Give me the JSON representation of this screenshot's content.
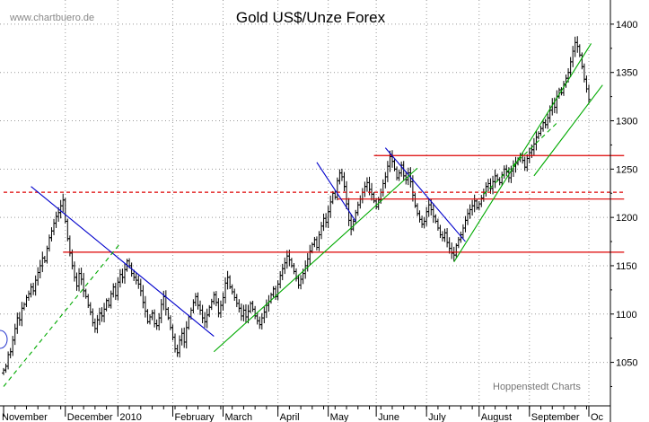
{
  "chart_data": {
    "type": "ohlc",
    "title": "Gold US$/Unze Forex",
    "watermark": "www.chartbuero.de",
    "credit": "Hoppenstedt Charts",
    "xlabel": "",
    "ylabel": "",
    "ylim": [
      1005,
      1425
    ],
    "y_ticks": [
      1050,
      1100,
      1150,
      1200,
      1250,
      1300,
      1350,
      1400
    ],
    "x_ticks": [
      "November",
      "December",
      "2010",
      "February",
      "March",
      "April",
      "May",
      "June",
      "July",
      "August",
      "September",
      "Oc"
    ],
    "grid": true,
    "series": [
      {
        "name": "",
        "style": "bar",
        "color": "#000000",
        "close": [
          1042,
          1046,
          1058,
          1061,
          1073,
          1085,
          1096,
          1094,
          1106,
          1110,
          1117,
          1121,
          1128,
          1124,
          1135,
          1143,
          1150,
          1158,
          1155,
          1168,
          1179,
          1186,
          1194,
          1201,
          1205,
          1212,
          1218,
          1196,
          1178,
          1163,
          1150,
          1138,
          1129,
          1142,
          1136,
          1124,
          1118,
          1109,
          1102,
          1091,
          1085,
          1094,
          1101,
          1098,
          1105,
          1114,
          1109,
          1121,
          1128,
          1119,
          1133,
          1141,
          1138,
          1146,
          1155,
          1150,
          1142,
          1138,
          1135,
          1131,
          1124,
          1112,
          1103,
          1092,
          1097,
          1101,
          1090,
          1088,
          1096,
          1110,
          1118,
          1105,
          1096,
          1086,
          1076,
          1064,
          1060,
          1073,
          1080,
          1071,
          1086,
          1097,
          1104,
          1112,
          1118,
          1109,
          1104,
          1096,
          1092,
          1099,
          1107,
          1113,
          1120,
          1112,
          1101,
          1109,
          1117,
          1132,
          1138,
          1128,
          1123,
          1117,
          1111,
          1106,
          1098,
          1104,
          1097,
          1103,
          1111,
          1105,
          1098,
          1093,
          1089,
          1096,
          1102,
          1109,
          1113,
          1120,
          1126,
          1118,
          1131,
          1140,
          1147,
          1153,
          1160,
          1156,
          1150,
          1144,
          1137,
          1130,
          1136,
          1142,
          1150,
          1157,
          1165,
          1172,
          1177,
          1169,
          1182,
          1191,
          1199,
          1195,
          1206,
          1216,
          1225,
          1221,
          1238,
          1246,
          1242,
          1232,
          1214,
          1197,
          1188,
          1196,
          1205,
          1213,
          1219,
          1226,
          1232,
          1236,
          1229,
          1224,
          1217,
          1211,
          1218,
          1226,
          1235,
          1242,
          1253,
          1263,
          1258,
          1250,
          1241,
          1246,
          1254,
          1243,
          1239,
          1246,
          1237,
          1223,
          1212,
          1204,
          1198,
          1193,
          1196,
          1206,
          1213,
          1208,
          1201,
          1196,
          1189,
          1182,
          1179,
          1184,
          1174,
          1168,
          1163,
          1161,
          1171,
          1177,
          1182,
          1189,
          1197,
          1204,
          1208,
          1212,
          1217,
          1210,
          1214,
          1220,
          1226,
          1232,
          1235,
          1230,
          1237,
          1243,
          1239,
          1236,
          1244,
          1250,
          1247,
          1241,
          1248,
          1253,
          1256,
          1260,
          1264,
          1259,
          1252,
          1261,
          1267,
          1270,
          1276,
          1283,
          1287,
          1292,
          1298,
          1296,
          1303,
          1311,
          1318,
          1314,
          1325,
          1332,
          1329,
          1338,
          1344,
          1350,
          1361,
          1372,
          1381,
          1377,
          1368,
          1356,
          1343,
          1333,
          1322
        ]
      }
    ],
    "horizontal_lines": [
      {
        "value": 1226,
        "color": "#dd0000",
        "style": "dashed",
        "from_index": 0,
        "to_index": 262
      },
      {
        "value": 1164,
        "color": "#dd0000",
        "style": "solid",
        "from_index": 26,
        "to_index": 262
      },
      {
        "value": 1219,
        "color": "#dd0000",
        "style": "solid",
        "from_index": 146,
        "to_index": 262
      },
      {
        "value": 1264,
        "color": "#dd0000",
        "style": "solid",
        "from_index": 162,
        "to_index": 262
      }
    ],
    "trend_lines": [
      {
        "color": "#0000cc",
        "style": "solid",
        "from": [
          12,
          1232
        ],
        "to": [
          92,
          1077
        ]
      },
      {
        "color": "#0000cc",
        "style": "solid",
        "from": [
          137,
          1257
        ],
        "to": [
          154,
          1196
        ]
      },
      {
        "color": "#0000cc",
        "style": "solid",
        "from": [
          167,
          1272
        ],
        "to": [
          202,
          1175
        ]
      },
      {
        "color": "#00aa00",
        "style": "dashed",
        "from": [
          0,
          1025
        ],
        "to": [
          51,
          1173
        ]
      },
      {
        "color": "#00aa00",
        "style": "solid",
        "from": [
          92,
          1061
        ],
        "to": [
          181,
          1251
        ]
      },
      {
        "color": "#00aa00",
        "style": "solid",
        "from": [
          197,
          1154
        ],
        "to": [
          257,
          1380
        ]
      },
      {
        "color": "#00aa00",
        "style": "dashed",
        "from": [
          210,
          1224
        ],
        "to": [
          243,
          1300
        ]
      },
      {
        "color": "#00aa00",
        "style": "solid",
        "from": [
          232,
          1243
        ],
        "to": [
          262,
          1337
        ]
      }
    ]
  }
}
